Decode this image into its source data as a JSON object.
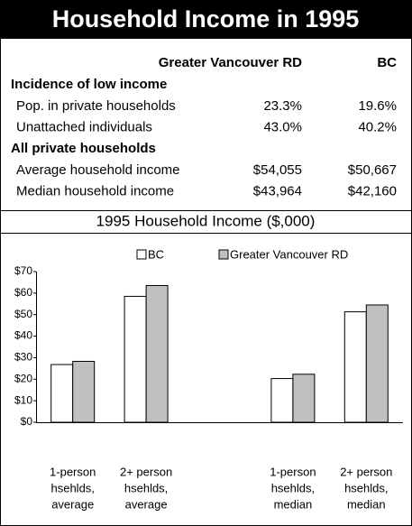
{
  "header": {
    "title": "Household Income in 1995"
  },
  "table": {
    "columns": [
      "Greater Vancouver RD",
      "BC"
    ],
    "sections": [
      {
        "title": "Incidence of low income",
        "rows": [
          [
            "Pop. in private households",
            "23.3%",
            "19.6%"
          ],
          [
            "Unattached individuals",
            "43.0%",
            "40.2%"
          ]
        ]
      },
      {
        "title": "All private households",
        "rows": [
          [
            "Average household income",
            "$54,055",
            "$50,667"
          ],
          [
            "Median household income",
            "$43,964",
            "$42,160"
          ]
        ]
      }
    ]
  },
  "chart_data": {
    "type": "bar",
    "title": "1995 Household Income ($,000)",
    "categories": [
      [
        "1-person",
        "hsehlds,",
        "average"
      ],
      [
        "2+ person",
        "hsehlds,",
        "average"
      ],
      null,
      [
        "1-person",
        "hsehlds,",
        "median"
      ],
      [
        "2+ person",
        "hsehlds,",
        "median"
      ]
    ],
    "series": [
      {
        "name": "BC",
        "color": "#ffffff",
        "values": [
          26.8,
          58.5,
          null,
          20.3,
          51.3
        ]
      },
      {
        "name": "Greater Vancouver RD",
        "color": "#c0c0c0",
        "values": [
          28.3,
          63.5,
          null,
          22.3,
          54.5
        ]
      }
    ],
    "ylim": [
      0,
      70
    ],
    "yticks": [
      {
        "value": 0,
        "label": "$0"
      },
      {
        "value": 10,
        "label": "$10"
      },
      {
        "value": 20,
        "label": "$20"
      },
      {
        "value": 30,
        "label": "$30"
      },
      {
        "value": 40,
        "label": "$40"
      },
      {
        "value": 50,
        "label": "$50"
      },
      {
        "value": 60,
        "label": "$60"
      },
      {
        "value": 70,
        "label": "$70"
      }
    ],
    "legend": "top"
  }
}
